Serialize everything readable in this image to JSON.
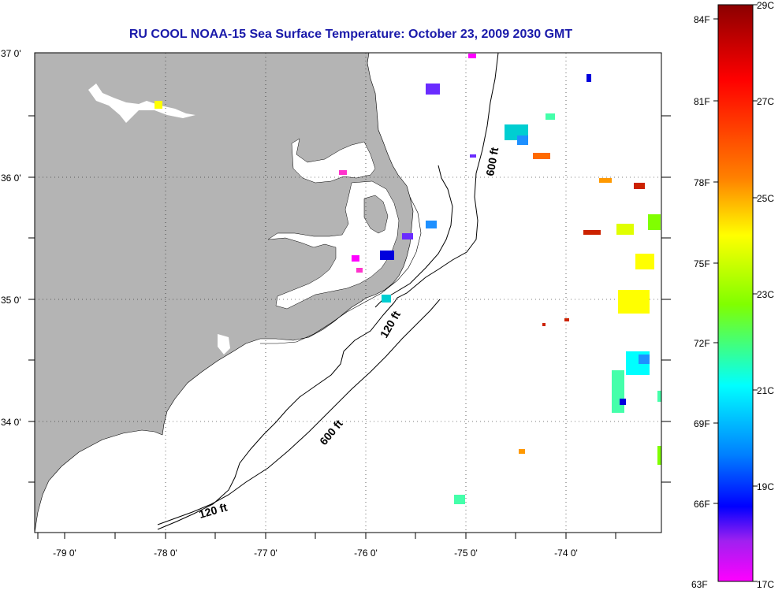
{
  "title": "RU COOL  NOAA-15  Sea Surface Temperature:  October 23, 2009 2030 GMT",
  "map": {
    "lon_labels": [
      "-79 0'",
      "-78 0'",
      "-77 0'",
      "-76 0'",
      "-75 0'",
      "-74 0'"
    ],
    "lat_labels": [
      "37 0'",
      "36 0'",
      "35 0'",
      "34 0'"
    ],
    "contour_labels": [
      "600 ft",
      "120 ft",
      "600 ft",
      "120 ft"
    ],
    "land_color": "#b4b4b4",
    "water_color": "#ffffff"
  },
  "colorbar": {
    "fahrenheit_labels": [
      "84F",
      "81F",
      "78F",
      "75F",
      "72F",
      "69F",
      "66F",
      "63F"
    ],
    "celsius_labels": [
      "29C",
      "27C",
      "25C",
      "23C",
      "21C",
      "19C",
      "17C"
    ],
    "gradient_colors": [
      "#8b0000",
      "#ff0000",
      "#ff8000",
      "#ffff00",
      "#80ff00",
      "#00ffff",
      "#0080ff",
      "#0000ff",
      "#a020f0",
      "#ff00ff"
    ]
  },
  "sst_patches": [
    {
      "color": "#ff00ff"
    },
    {
      "color": "#6a2cff"
    },
    {
      "color": "#1e90ff"
    },
    {
      "color": "#00ced1"
    },
    {
      "color": "#ff6a00"
    },
    {
      "color": "#e0ff00"
    },
    {
      "color": "#ffff00"
    },
    {
      "color": "#0000dd"
    },
    {
      "color": "#ff33cc"
    },
    {
      "color": "#44ffaa"
    },
    {
      "color": "#cc2200"
    },
    {
      "color": "#ff9900"
    }
  ]
}
